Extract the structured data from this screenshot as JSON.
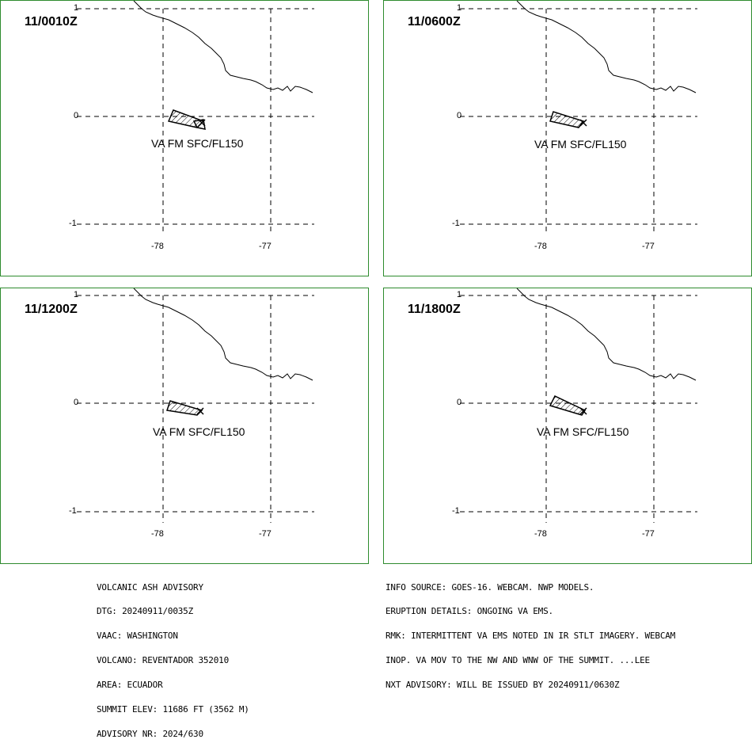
{
  "panels": [
    {
      "time": "11/0010Z",
      "va_label": "VA FM SFC/FL150"
    },
    {
      "time": "11/0600Z",
      "va_label": "VA FM SFC/FL150"
    },
    {
      "time": "11/1200Z",
      "va_label": "VA FM SFC/FL150"
    },
    {
      "time": "11/1800Z",
      "va_label": "VA FM SFC/FL150"
    }
  ],
  "axes": {
    "lat_labels": [
      "1",
      "0",
      "-1"
    ],
    "lon_labels": [
      "-78",
      "-77"
    ]
  },
  "advisory_left": [
    "VOLCANIC ASH ADVISORY",
    "DTG: 20240911/0035Z",
    "VAAC: WASHINGTON",
    "VOLCANO: REVENTADOR 352010",
    "AREA: ECUADOR",
    "SUMMIT ELEV: 11686 FT (3562 M)",
    "ADVISORY NR: 2024/630"
  ],
  "advisory_right": [
    "INFO SOURCE: GOES-16. WEBCAM. NWP MODELS.",
    "ERUPTION DETAILS: ONGOING VA EMS.",
    "RMK: INTERMITTENT VA EMS NOTED IN IR STLT IMAGERY. WEBCAM",
    "INOP. VA MOV TO THE NW AND WNW OF THE SUMMIT. ...LEE",
    "NXT ADVISORY: WILL BE ISSUED BY 20240911/0630Z"
  ],
  "colors": {
    "panel_border": "#2e8b2e",
    "lines": "#000000"
  }
}
